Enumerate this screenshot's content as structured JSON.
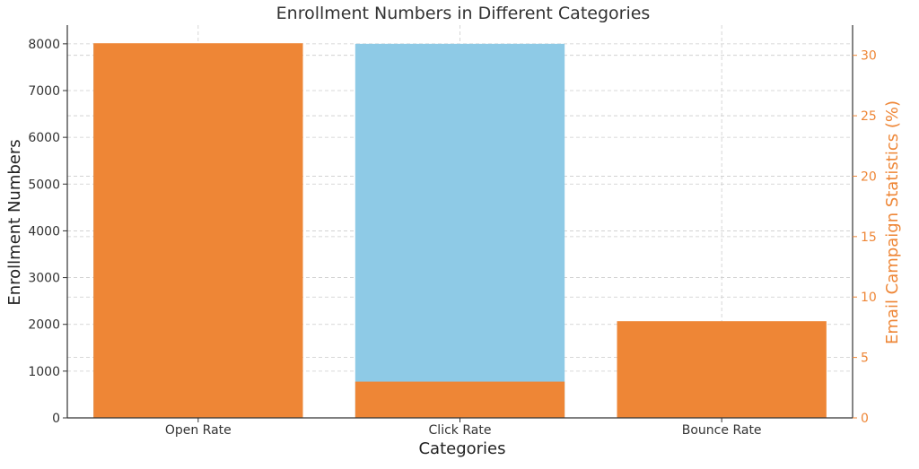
{
  "chart_data": {
    "type": "bar",
    "title": "Enrollment Numbers in Different Categories",
    "xlabel": "Categories",
    "ylabel": "Enrollment Numbers",
    "y2label": "Email Campaign Statistics (%)",
    "categories": [
      "Open Rate",
      "Click Rate",
      "Bounce Rate"
    ],
    "series": [
      {
        "axis": "left",
        "color": "#8ecae6",
        "values": [
          8000,
          8000,
          0
        ]
      },
      {
        "axis": "right",
        "color": "#ee8636",
        "values": [
          31,
          3,
          8
        ]
      }
    ],
    "ylim": [
      0,
      8400
    ],
    "y2lim": [
      0,
      32.5
    ],
    "yticks": [
      0,
      1000,
      2000,
      3000,
      4000,
      5000,
      6000,
      7000,
      8000
    ],
    "y2ticks": [
      0,
      5,
      10,
      15,
      20,
      25,
      30
    ],
    "grid": true
  },
  "colors": {
    "primary_axis": "#333333",
    "secondary_axis": "#ee8636",
    "grid": "#cccccc"
  }
}
